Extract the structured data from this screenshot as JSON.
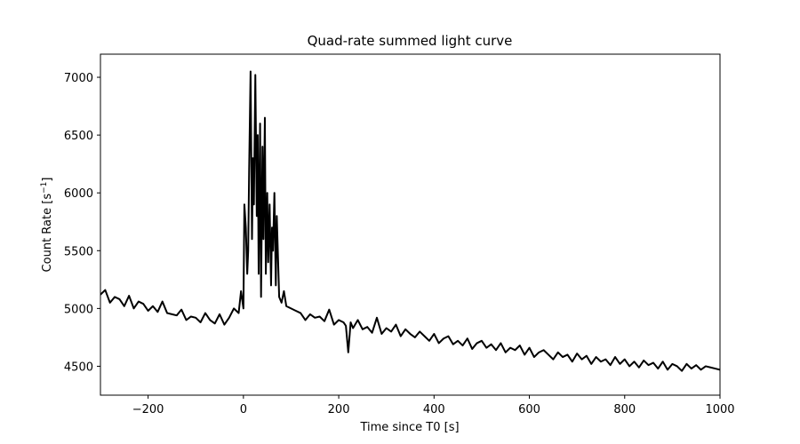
{
  "chart_data": {
    "type": "line",
    "title": "Quad-rate summed light curve",
    "xlabel": "Time since T0 [s]",
    "ylabel_main": "Count Rate [s",
    "ylabel_sup": "−1",
    "ylabel_end": "]",
    "xlim": [
      -300,
      1000
    ],
    "ylim": [
      4250,
      7200
    ],
    "grid": false,
    "line_color": "#000000",
    "xticks": [
      {
        "value": -200,
        "label": "−200"
      },
      {
        "value": 0,
        "label": "0"
      },
      {
        "value": 200,
        "label": "200"
      },
      {
        "value": 400,
        "label": "400"
      },
      {
        "value": 600,
        "label": "600"
      },
      {
        "value": 800,
        "label": "800"
      },
      {
        "value": 1000,
        "label": "1000"
      }
    ],
    "yticks": [
      {
        "value": 4500,
        "label": "4500"
      },
      {
        "value": 5000,
        "label": "5000"
      },
      {
        "value": 5500,
        "label": "5500"
      },
      {
        "value": 6000,
        "label": "6000"
      },
      {
        "value": 6500,
        "label": "6500"
      },
      {
        "value": 7000,
        "label": "7000"
      }
    ],
    "series": [
      {
        "x": [
          -300,
          -290,
          -280,
          -270,
          -260,
          -250,
          -240,
          -230,
          -220,
          -210,
          -200,
          -190,
          -180,
          -170,
          -160,
          -150,
          -140,
          -130,
          -120,
          -110,
          -100,
          -90,
          -80,
          -70,
          -60,
          -50,
          -40,
          -30,
          -20,
          -10,
          -5,
          0,
          2,
          5,
          8,
          10,
          12,
          15,
          18,
          20,
          22,
          25,
          28,
          30,
          32,
          35,
          37,
          40,
          42,
          45,
          47,
          50,
          52,
          55,
          58,
          60,
          62,
          65,
          68,
          70,
          75,
          80,
          85,
          90,
          100,
          110,
          120,
          130,
          140,
          150,
          160,
          170,
          180,
          190,
          200,
          210,
          215,
          220,
          225,
          230,
          240,
          250,
          260,
          270,
          280,
          290,
          300,
          310,
          320,
          330,
          340,
          350,
          360,
          370,
          380,
          390,
          400,
          410,
          420,
          430,
          440,
          450,
          460,
          470,
          480,
          490,
          500,
          510,
          520,
          530,
          540,
          550,
          560,
          570,
          580,
          590,
          600,
          610,
          620,
          630,
          640,
          650,
          660,
          670,
          680,
          690,
          700,
          710,
          720,
          730,
          740,
          750,
          760,
          770,
          780,
          790,
          800,
          810,
          820,
          830,
          840,
          850,
          860,
          870,
          880,
          890,
          900,
          910,
          920,
          930,
          940,
          950,
          960,
          970,
          980,
          990,
          1000
        ],
        "y": [
          5120,
          5160,
          5050,
          5100,
          5080,
          5020,
          5110,
          5000,
          5060,
          5040,
          4980,
          5020,
          4970,
          5060,
          4960,
          4950,
          4940,
          4990,
          4900,
          4930,
          4920,
          4880,
          4960,
          4900,
          4870,
          4950,
          4860,
          4920,
          5000,
          4960,
          5150,
          5000,
          5900,
          5700,
          5300,
          5500,
          6200,
          7050,
          5600,
          6300,
          5900,
          7020,
          5800,
          6500,
          5300,
          6600,
          5100,
          6400,
          5600,
          6650,
          5300,
          6000,
          5400,
          5900,
          5200,
          5700,
          5500,
          6000,
          5200,
          5800,
          5100,
          5050,
          5150,
          5020,
          5000,
          4980,
          4960,
          4900,
          4950,
          4920,
          4930,
          4890,
          4990,
          4860,
          4900,
          4880,
          4850,
          4620,
          4880,
          4830,
          4900,
          4820,
          4840,
          4790,
          4920,
          4780,
          4830,
          4800,
          4860,
          4760,
          4820,
          4780,
          4750,
          4800,
          4760,
          4720,
          4780,
          4700,
          4740,
          4760,
          4690,
          4720,
          4680,
          4740,
          4650,
          4700,
          4720,
          4660,
          4690,
          4640,
          4700,
          4620,
          4660,
          4640,
          4680,
          4600,
          4660,
          4580,
          4620,
          4640,
          4600,
          4560,
          4620,
          4580,
          4600,
          4540,
          4610,
          4560,
          4590,
          4520,
          4580,
          4540,
          4560,
          4510,
          4580,
          4520,
          4560,
          4500,
          4540,
          4490,
          4550,
          4510,
          4530,
          4480,
          4540,
          4470,
          4520,
          4500,
          4460,
          4520,
          4480,
          4510,
          4470,
          4500,
          4490,
          4480,
          4470
        ]
      }
    ]
  }
}
